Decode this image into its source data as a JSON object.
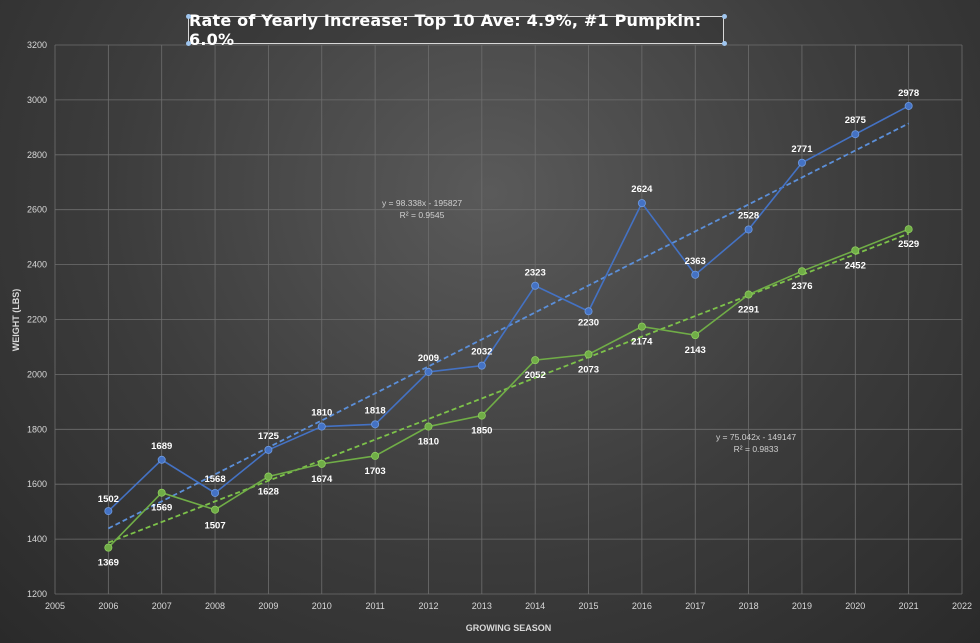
{
  "chart_data": {
    "type": "line",
    "title": "Rate of Yearly Increase: Top 10 Ave: 4.9%, #1 Pumpkin: 6.0%",
    "xlabel": "GROWING SEASON",
    "ylabel": "WEIGHT (LBS)",
    "xlim": [
      2005,
      2022
    ],
    "ylim": [
      1200,
      3200
    ],
    "x_ticks": [
      "2005",
      "2006",
      "2007",
      "2008",
      "2009",
      "2010",
      "2011",
      "2012",
      "2013",
      "2014",
      "2015",
      "2016",
      "2017",
      "2018",
      "2019",
      "2020",
      "2021",
      "2022"
    ],
    "y_ticks": [
      "1200",
      "1400",
      "1600",
      "1800",
      "2000",
      "2200",
      "2400",
      "2600",
      "2800",
      "3000",
      "3200"
    ],
    "grid": true,
    "series": [
      {
        "color": "#4472c4",
        "x": [
          2006,
          2007,
          2008,
          2009,
          2010,
          2011,
          2012,
          2013,
          2014,
          2015,
          2016,
          2017,
          2018,
          2019,
          2020,
          2021
        ],
        "values": [
          1502,
          1689,
          1568,
          1725,
          1810,
          1818,
          2009,
          2032,
          2323,
          2230,
          2624,
          2363,
          2528,
          2771,
          2875,
          2978
        ],
        "labels": [
          "1502",
          "1689",
          "1568",
          "1725",
          "1810",
          "1818",
          "2009",
          "2032",
          "2323",
          "2230",
          "2624",
          "2363",
          "2528",
          "2771",
          "2875",
          "2978"
        ],
        "trendline": {
          "slope": 98.338,
          "intercept": -195827,
          "equation": "y = 98.338x - 195827",
          "r2": "R² = 0.9545"
        }
      },
      {
        "color": "#70ad47",
        "x": [
          2006,
          2007,
          2008,
          2009,
          2010,
          2011,
          2012,
          2013,
          2014,
          2015,
          2016,
          2017,
          2018,
          2019,
          2020,
          2021
        ],
        "values": [
          1369,
          1569,
          1507,
          1628,
          1674,
          1703,
          1810,
          1850,
          2052,
          2073,
          2174,
          2143,
          2291,
          2376,
          2452,
          2529
        ],
        "labels": [
          "1369",
          "1569",
          "1507",
          "1628",
          "1674",
          "1703",
          "1810",
          "1850",
          "2052",
          "2073",
          "2174",
          "2143",
          "2291",
          "2376",
          "2452",
          "2529"
        ],
        "trendline": {
          "slope": 75.042,
          "intercept": -149147,
          "equation": "y = 75.042x - 149147",
          "r2": "R² = 0.9833"
        }
      }
    ]
  }
}
